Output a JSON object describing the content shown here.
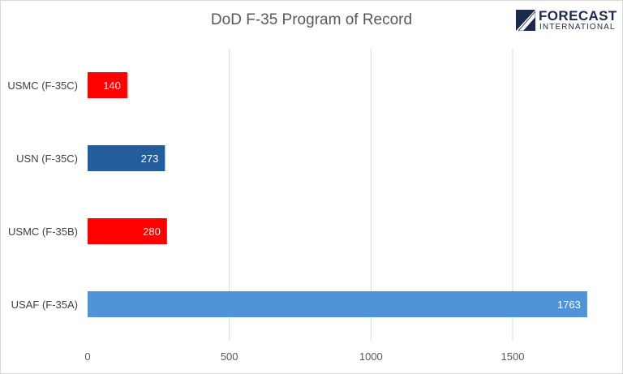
{
  "chart_data": {
    "type": "bar",
    "orientation": "horizontal",
    "title": "DoD F-35 Program of Record",
    "categories": [
      "USMC (F-35C)",
      "USN (F-35C)",
      "USMC (F-35B)",
      "USAF (F-35A)"
    ],
    "values": [
      140,
      273,
      280,
      1763
    ],
    "bar_colors": [
      "#ff0000",
      "#245d9c",
      "#ff0000",
      "#4f93d9"
    ],
    "xlim": [
      0,
      1900
    ],
    "xticks": [
      "0",
      "500",
      "1000",
      "1500"
    ],
    "xtick_values": [
      0,
      500,
      1000,
      1500
    ],
    "xlabel": "",
    "ylabel": "",
    "grid": "vertical",
    "legend": "none",
    "data_labels": [
      "140",
      "273",
      "280",
      "1763"
    ]
  },
  "logo": {
    "name": "forecast-international-logo",
    "word": "FORECAST",
    "sub": "INTERNATIONAL",
    "color": "#1a2a4a"
  }
}
